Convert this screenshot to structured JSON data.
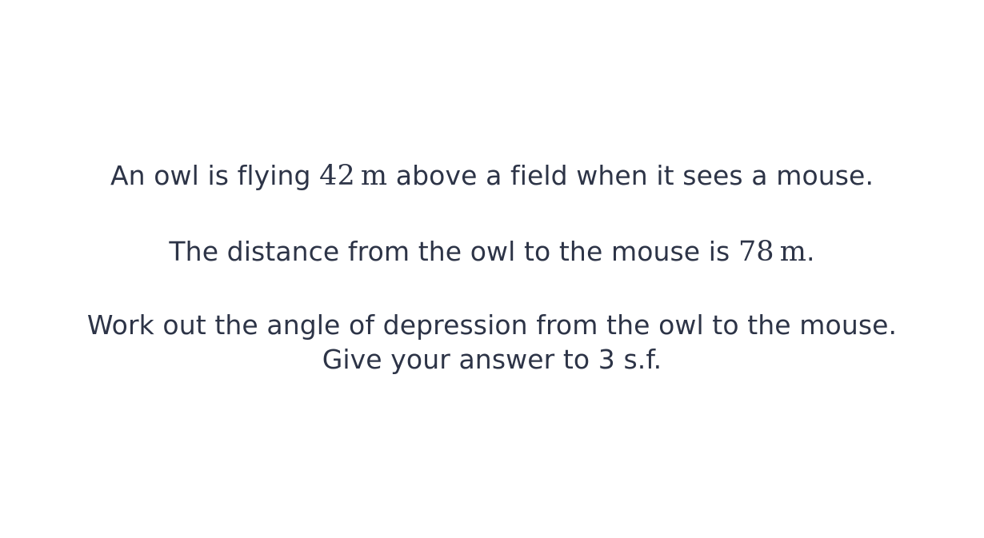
{
  "question": {
    "line1": {
      "before": "An owl is flying ",
      "value": "42",
      "unit": "m",
      "after": " above a field when it sees a mouse."
    },
    "line2": {
      "before": "The distance from the owl to the mouse is ",
      "value": "78",
      "unit": "m",
      "after": "."
    },
    "line3": "Work out the angle of depression from the owl to the mouse.",
    "line4": "Give your answer to 3 s.f."
  },
  "colors": {
    "text": "#2d3447",
    "background": "#ffffff"
  }
}
